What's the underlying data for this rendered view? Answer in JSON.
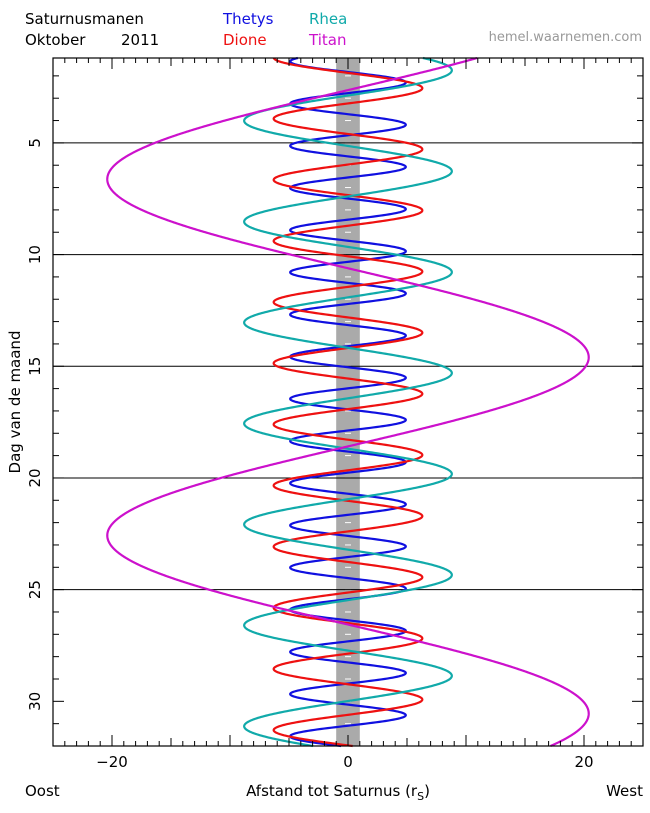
{
  "header": {
    "title": "Saturnusmanen",
    "month": "Oktober",
    "year": "2011",
    "website": "hemel.waarnemen.com"
  },
  "footer": {
    "left": "Oost",
    "right": "West"
  },
  "chart_data": {
    "type": "line",
    "title": "Saturnusmanen",
    "xlabel": "Afstand tot Saturnus (r",
    "xlabel_sub": "S",
    "xlabel_close": ")",
    "ylabel": "Dag van de maand",
    "xlim": [
      -25,
      25
    ],
    "ylim": [
      1.2,
      32
    ],
    "y_inverted": true,
    "x_ticks": [
      -20,
      0,
      20
    ],
    "x_ticklabels": [
      "−20",
      "0",
      "20"
    ],
    "y_ticks": [
      5,
      10,
      15,
      20,
      25,
      30
    ],
    "y_ticklabels": [
      "5",
      "10",
      "15",
      "20",
      "25",
      "30"
    ],
    "grid_lines_y": [
      5,
      10,
      15,
      20,
      25
    ],
    "planet_band": [
      -1,
      1
    ],
    "legend_placement": "top",
    "series": [
      {
        "name": "Thetys",
        "color": "#1010e0",
        "amplitude": 4.9,
        "period_days": 1.888,
        "phase_day": 2.3
      },
      {
        "name": "Dione",
        "color": "#ee1111",
        "amplitude": 6.3,
        "period_days": 2.737,
        "phase_day": 2.55
      },
      {
        "name": "Rhea",
        "color": "#11aaaa",
        "amplitude": 8.8,
        "period_days": 4.518,
        "phase_day": 1.75
      },
      {
        "name": "Titan",
        "color": "#cc11cc",
        "amplitude": 20.4,
        "period_days": 15.95,
        "phase_day": 14.6
      }
    ]
  }
}
